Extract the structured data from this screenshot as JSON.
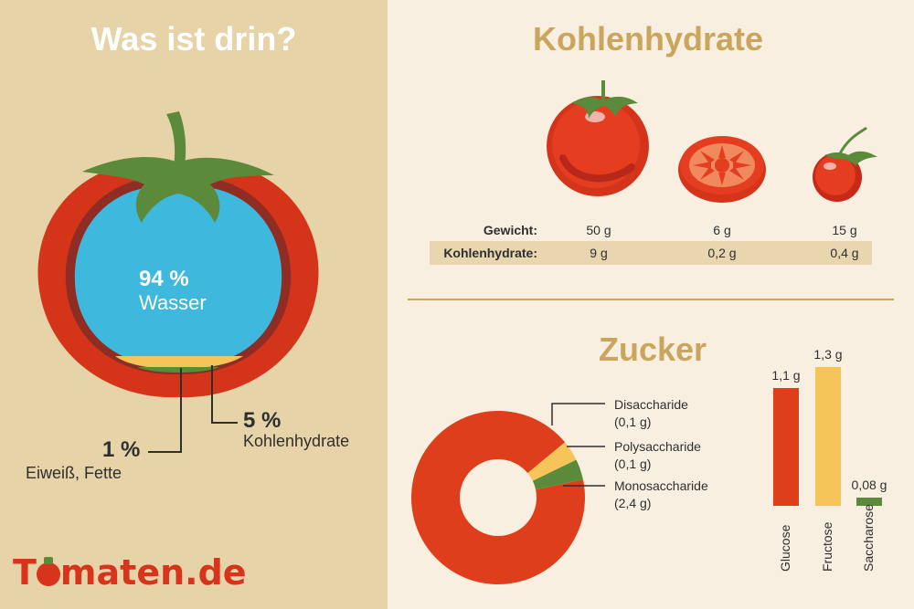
{
  "left": {
    "title": "Was ist drin?",
    "water": {
      "pct": "94 %",
      "label": "Wasser"
    },
    "carbs": {
      "pct": "5 %",
      "label": "Kohlenhydrate"
    },
    "protein": {
      "pct": "1 %",
      "label": "Eiweiß, Fette"
    }
  },
  "carbs_section": {
    "title": "Kohlenhydrate",
    "rows": [
      {
        "label": "Gewicht:",
        "values": [
          "50 g",
          "6 g",
          "15 g"
        ]
      },
      {
        "label": "Kohlenhydrate:",
        "values": [
          "9 g",
          "0,2 g",
          "0,4 g"
        ]
      }
    ]
  },
  "sugar_section": {
    "title": "Zucker"
  },
  "logo": {
    "prefix": "T",
    "suffix": "maten.de"
  },
  "colors": {
    "red": "#df3e1c",
    "yellow": "#f5c55a",
    "green": "#5b8b3a",
    "gold": "#c9a55e",
    "blue": "#3fb8dd"
  },
  "chart_data": [
    {
      "type": "pie",
      "categories": [
        "Monosaccharide",
        "Disaccharide",
        "Polysaccharide"
      ],
      "values": [
        2.4,
        0.1,
        0.1
      ],
      "labels": [
        {
          "name": "Disaccharide",
          "value": "(0,1 g)"
        },
        {
          "name": "Polysaccharide",
          "value": "(0,1 g)"
        },
        {
          "name": "Monosaccharide",
          "value": "(2,4 g)"
        }
      ]
    },
    {
      "type": "bar",
      "categories": [
        "Glucose",
        "Fructose",
        "Saccharose"
      ],
      "values": [
        1.1,
        1.3,
        0.08
      ],
      "value_labels": [
        "1,1 g",
        "1,3 g",
        "0,08 g"
      ],
      "ylim": [
        0,
        1.3
      ]
    }
  ]
}
